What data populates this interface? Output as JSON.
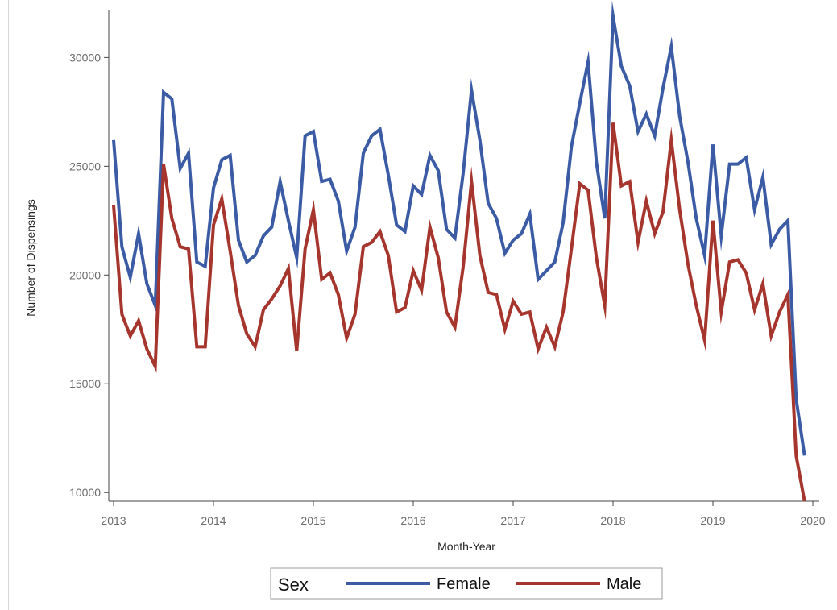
{
  "chart_data": {
    "type": "line",
    "title": "",
    "xlabel": "Month-Year",
    "ylabel": "Number of Dispensings",
    "xlim": [
      2013,
      2020
    ],
    "ylim": [
      9600,
      32200
    ],
    "x_ticks": [
      "2013",
      "2014",
      "2015",
      "2016",
      "2017",
      "2018",
      "2019",
      "2020"
    ],
    "y_ticks": [
      "10000",
      "15000",
      "20000",
      "25000",
      "30000"
    ],
    "grid": false,
    "legend": {
      "title": "Sex",
      "placement": "bottom"
    },
    "x_start": "2013-01",
    "x_step": "month",
    "series": [
      {
        "name": "Female",
        "color": "#3b5ba5",
        "values": [
          26200,
          21300,
          19900,
          21900,
          19600,
          18600,
          28400,
          28100,
          24900,
          25600,
          20600,
          20400,
          24000,
          25300,
          25500,
          21600,
          20600,
          20900,
          21800,
          22200,
          24300,
          22500,
          20800,
          26400,
          26600,
          24300,
          24400,
          23400,
          21100,
          22200,
          25600,
          26400,
          26700,
          24600,
          22300,
          22000,
          24100,
          23700,
          25500,
          24800,
          22100,
          21700,
          24700,
          28500,
          26200,
          23300,
          22600,
          21000,
          21600,
          21900,
          22800,
          19800,
          20200,
          20600,
          22400,
          25900,
          27900,
          29800,
          25200,
          22600,
          31900,
          29600,
          28700,
          26600,
          27400,
          26400,
          28600,
          30500,
          27300,
          25200,
          22600,
          20900,
          26000,
          21800,
          25100,
          25100,
          25400,
          23000,
          24500,
          21400,
          22100,
          22500,
          14300,
          11700
        ]
      },
      {
        "name": "Male",
        "color": "#a5352d",
        "values": [
          23200,
          18200,
          17200,
          17900,
          16600,
          15800,
          25100,
          22600,
          21300,
          21200,
          16700,
          16700,
          22300,
          23500,
          21100,
          18600,
          17300,
          16700,
          18400,
          18900,
          19500,
          20300,
          16500,
          21200,
          23000,
          19800,
          20100,
          19100,
          17100,
          18200,
          21300,
          21500,
          22000,
          20900,
          18300,
          18500,
          20200,
          19300,
          22200,
          20800,
          18300,
          17600,
          20400,
          24300,
          20900,
          19200,
          19100,
          17500,
          18800,
          18200,
          18300,
          16600,
          17600,
          16700,
          18300,
          21200,
          24200,
          23900,
          20800,
          18600,
          27000,
          24100,
          24300,
          21500,
          23400,
          21900,
          22900,
          26200,
          23000,
          20500,
          18600,
          17000,
          22500,
          18300,
          20600,
          20700,
          20100,
          18400,
          19600,
          17200,
          18300,
          19100,
          11700,
          9600
        ]
      }
    ]
  }
}
